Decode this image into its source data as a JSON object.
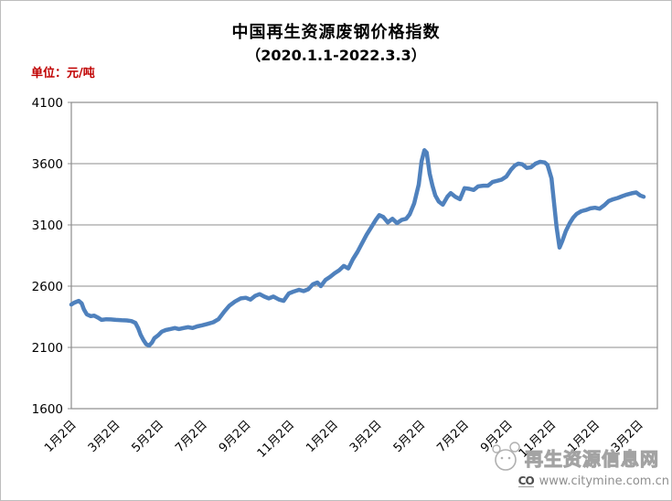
{
  "chart_data": {
    "type": "line",
    "title": "中国再生资源废钢价格指数",
    "subtitle": "（2020.1.1-2022.3.3）",
    "unit_label": "单位：元/吨",
    "date_range_shown": "2020.1.1-2022.3.3",
    "ylim": [
      1600,
      4100
    ],
    "y_ticks": [
      1600,
      2100,
      2600,
      3100,
      3600,
      4100
    ],
    "x_tick_labels": [
      "1月2日",
      "3月2日",
      "5月2日",
      "7月2日",
      "9月2日",
      "11月2日",
      "1月2日",
      "3月2日",
      "5月2日",
      "7月2日",
      "9月2日",
      "11月2日",
      "1月2日",
      "3月2日"
    ],
    "grid": true,
    "legend": false,
    "line_color": "#4F81BD",
    "grid_color": "#8C8C8C",
    "axis_text_color": "#000000",
    "unit_label_color": "#C00000",
    "points": [
      [
        0.0,
        2450
      ],
      [
        0.005,
        2465
      ],
      [
        0.013,
        2480
      ],
      [
        0.018,
        2460
      ],
      [
        0.022,
        2410
      ],
      [
        0.027,
        2370
      ],
      [
        0.034,
        2355
      ],
      [
        0.04,
        2360
      ],
      [
        0.046,
        2345
      ],
      [
        0.053,
        2325
      ],
      [
        0.061,
        2330
      ],
      [
        0.069,
        2328
      ],
      [
        0.078,
        2325
      ],
      [
        0.088,
        2322
      ],
      [
        0.097,
        2320
      ],
      [
        0.105,
        2315
      ],
      [
        0.112,
        2300
      ],
      [
        0.117,
        2255
      ],
      [
        0.121,
        2205
      ],
      [
        0.126,
        2160
      ],
      [
        0.131,
        2125
      ],
      [
        0.136,
        2115
      ],
      [
        0.141,
        2140
      ],
      [
        0.145,
        2175
      ],
      [
        0.152,
        2200
      ],
      [
        0.158,
        2228
      ],
      [
        0.165,
        2242
      ],
      [
        0.173,
        2250
      ],
      [
        0.181,
        2258
      ],
      [
        0.188,
        2250
      ],
      [
        0.196,
        2258
      ],
      [
        0.204,
        2265
      ],
      [
        0.212,
        2258
      ],
      [
        0.22,
        2272
      ],
      [
        0.228,
        2280
      ],
      [
        0.238,
        2292
      ],
      [
        0.248,
        2305
      ],
      [
        0.257,
        2330
      ],
      [
        0.267,
        2390
      ],
      [
        0.276,
        2440
      ],
      [
        0.286,
        2475
      ],
      [
        0.296,
        2500
      ],
      [
        0.305,
        2505
      ],
      [
        0.313,
        2490
      ],
      [
        0.321,
        2520
      ],
      [
        0.329,
        2535
      ],
      [
        0.337,
        2515
      ],
      [
        0.345,
        2500
      ],
      [
        0.353,
        2515
      ],
      [
        0.363,
        2490
      ],
      [
        0.371,
        2480
      ],
      [
        0.38,
        2540
      ],
      [
        0.388,
        2555
      ],
      [
        0.398,
        2570
      ],
      [
        0.406,
        2560
      ],
      [
        0.414,
        2575
      ],
      [
        0.422,
        2615
      ],
      [
        0.43,
        2630
      ],
      [
        0.436,
        2600
      ],
      [
        0.444,
        2650
      ],
      [
        0.452,
        2675
      ],
      [
        0.46,
        2705
      ],
      [
        0.468,
        2730
      ],
      [
        0.476,
        2765
      ],
      [
        0.484,
        2745
      ],
      [
        0.492,
        2820
      ],
      [
        0.5,
        2880
      ],
      [
        0.508,
        2950
      ],
      [
        0.516,
        3020
      ],
      [
        0.524,
        3080
      ],
      [
        0.532,
        3140
      ],
      [
        0.538,
        3180
      ],
      [
        0.545,
        3165
      ],
      [
        0.553,
        3120
      ],
      [
        0.561,
        3150
      ],
      [
        0.569,
        3115
      ],
      [
        0.577,
        3140
      ],
      [
        0.585,
        3150
      ],
      [
        0.591,
        3185
      ],
      [
        0.599,
        3275
      ],
      [
        0.607,
        3430
      ],
      [
        0.612,
        3620
      ],
      [
        0.617,
        3710
      ],
      [
        0.621,
        3690
      ],
      [
        0.626,
        3520
      ],
      [
        0.631,
        3420
      ],
      [
        0.636,
        3340
      ],
      [
        0.642,
        3290
      ],
      [
        0.649,
        3265
      ],
      [
        0.657,
        3330
      ],
      [
        0.663,
        3360
      ],
      [
        0.671,
        3330
      ],
      [
        0.679,
        3310
      ],
      [
        0.687,
        3400
      ],
      [
        0.695,
        3395
      ],
      [
        0.703,
        3385
      ],
      [
        0.711,
        3415
      ],
      [
        0.72,
        3420
      ],
      [
        0.728,
        3420
      ],
      [
        0.736,
        3450
      ],
      [
        0.744,
        3460
      ],
      [
        0.752,
        3470
      ],
      [
        0.76,
        3495
      ],
      [
        0.768,
        3550
      ],
      [
        0.775,
        3585
      ],
      [
        0.781,
        3600
      ],
      [
        0.788,
        3595
      ],
      [
        0.796,
        3565
      ],
      [
        0.803,
        3570
      ],
      [
        0.811,
        3600
      ],
      [
        0.819,
        3615
      ],
      [
        0.827,
        3610
      ],
      [
        0.832,
        3590
      ],
      [
        0.839,
        3480
      ],
      [
        0.843,
        3300
      ],
      [
        0.848,
        3080
      ],
      [
        0.853,
        2915
      ],
      [
        0.858,
        2970
      ],
      [
        0.864,
        3050
      ],
      [
        0.871,
        3115
      ],
      [
        0.877,
        3160
      ],
      [
        0.883,
        3190
      ],
      [
        0.891,
        3212
      ],
      [
        0.899,
        3222
      ],
      [
        0.907,
        3235
      ],
      [
        0.915,
        3240
      ],
      [
        0.923,
        3232
      ],
      [
        0.931,
        3260
      ],
      [
        0.939,
        3295
      ],
      [
        0.947,
        3310
      ],
      [
        0.955,
        3320
      ],
      [
        0.963,
        3335
      ],
      [
        0.971,
        3348
      ],
      [
        0.979,
        3358
      ],
      [
        0.987,
        3365
      ],
      [
        0.994,
        3340
      ],
      [
        1.0,
        3330
      ]
    ]
  },
  "watermark": {
    "site_name": "再生资源信息网",
    "url": "www.citymine.com.cn",
    "badge_text": "CO"
  }
}
